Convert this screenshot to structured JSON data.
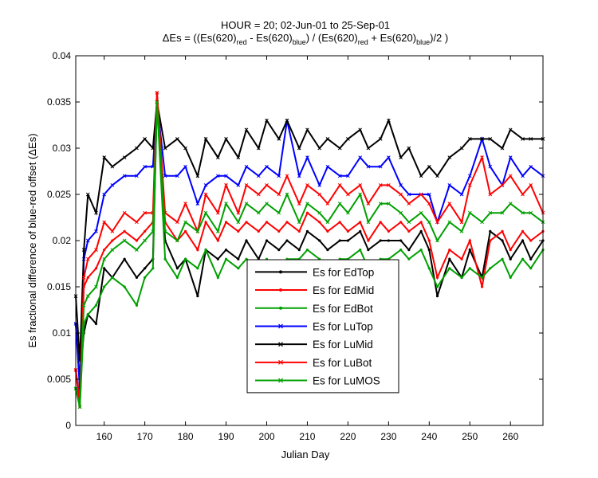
{
  "chart_data": {
    "type": "line",
    "title_line1": "HOUR = 20; 02-Jun-01 to 25-Sep-01",
    "title_line2": {
      "prefix": "ΔEs = ((Es(620)",
      "sub_red": "red",
      "mid1": " - Es(620)",
      "sub_blue": "blue",
      "mid2": ") / (Es(620)",
      "sub_red2": "red",
      "mid3": " + Es(620)",
      "sub_blue2": "blue",
      "suffix": ")/2  )"
    },
    "xlabel": "Julian Day",
    "ylabel": "Es fractional difference of blue-red offset (ΔEs)",
    "xlim": [
      153,
      268
    ],
    "ylim": [
      0,
      0.04
    ],
    "xticks": [
      160,
      170,
      180,
      190,
      200,
      210,
      220,
      230,
      240,
      250,
      260
    ],
    "yticks": [
      0,
      0.005,
      0.01,
      0.015,
      0.02,
      0.025,
      0.03,
      0.035,
      0.04
    ],
    "ytick_labels": [
      "0",
      "0.005",
      "0.01",
      "0.015",
      "0.02",
      "0.025",
      "0.03",
      "0.035",
      "0.04"
    ],
    "legend_position": "bottom-center",
    "series": [
      {
        "name": "Es for EdTop",
        "color": "#000000",
        "marker": "dot",
        "x": [
          153,
          154,
          155,
          156,
          158,
          160,
          162,
          165,
          168,
          170,
          172,
          173,
          175,
          178,
          180,
          183,
          185,
          188,
          190,
          193,
          195,
          198,
          200,
          203,
          205,
          208,
          210,
          213,
          215,
          218,
          220,
          223,
          225,
          228,
          230,
          233,
          235,
          238,
          240,
          242,
          245,
          248,
          250,
          253,
          255,
          258,
          260,
          263,
          265,
          268
        ],
        "y": [
          0.011,
          0.005,
          0.01,
          0.012,
          0.011,
          0.017,
          0.016,
          0.018,
          0.016,
          0.017,
          0.018,
          0.035,
          0.02,
          0.017,
          0.018,
          0.014,
          0.019,
          0.018,
          0.019,
          0.018,
          0.02,
          0.018,
          0.02,
          0.019,
          0.02,
          0.019,
          0.021,
          0.02,
          0.019,
          0.02,
          0.02,
          0.021,
          0.019,
          0.02,
          0.02,
          0.02,
          0.019,
          0.021,
          0.019,
          0.014,
          0.018,
          0.016,
          0.019,
          0.016,
          0.021,
          0.02,
          0.018,
          0.02,
          0.018,
          0.02
        ]
      },
      {
        "name": "Es for EdMid",
        "color": "#ff0000",
        "marker": "dot",
        "x": [
          153,
          154,
          155,
          156,
          158,
          160,
          162,
          165,
          168,
          170,
          172,
          173,
          175,
          178,
          180,
          183,
          185,
          188,
          190,
          193,
          195,
          198,
          200,
          203,
          205,
          208,
          210,
          213,
          215,
          218,
          220,
          223,
          225,
          228,
          230,
          233,
          235,
          238,
          240,
          242,
          245,
          248,
          250,
          253,
          255,
          258,
          260,
          263,
          265,
          268
        ],
        "y": [
          0.006,
          0.003,
          0.015,
          0.016,
          0.017,
          0.019,
          0.02,
          0.021,
          0.02,
          0.021,
          0.022,
          0.036,
          0.022,
          0.02,
          0.021,
          0.019,
          0.022,
          0.02,
          0.022,
          0.021,
          0.022,
          0.021,
          0.022,
          0.021,
          0.022,
          0.021,
          0.023,
          0.022,
          0.021,
          0.022,
          0.021,
          0.022,
          0.02,
          0.022,
          0.021,
          0.022,
          0.021,
          0.022,
          0.02,
          0.016,
          0.019,
          0.018,
          0.02,
          0.015,
          0.02,
          0.021,
          0.019,
          0.021,
          0.02,
          0.021
        ]
      },
      {
        "name": "Es for EdBot",
        "color": "#00a000",
        "marker": "dot",
        "x": [
          153,
          154,
          155,
          156,
          158,
          160,
          162,
          165,
          168,
          170,
          172,
          173,
          175,
          178,
          180,
          183,
          185,
          188,
          190,
          193,
          195,
          198,
          200,
          203,
          205,
          208,
          210,
          213,
          215,
          218,
          220,
          223,
          225,
          228,
          230,
          233,
          235,
          238,
          240,
          242,
          245,
          248,
          250,
          253,
          255,
          258,
          260,
          263,
          265,
          268
        ],
        "y": [
          0.004,
          0.002,
          0.011,
          0.012,
          0.013,
          0.015,
          0.016,
          0.015,
          0.013,
          0.016,
          0.017,
          0.035,
          0.018,
          0.016,
          0.018,
          0.017,
          0.019,
          0.016,
          0.018,
          0.017,
          0.018,
          0.017,
          0.018,
          0.017,
          0.018,
          0.018,
          0.019,
          0.018,
          0.017,
          0.018,
          0.018,
          0.019,
          0.017,
          0.018,
          0.018,
          0.019,
          0.018,
          0.019,
          0.017,
          0.015,
          0.017,
          0.016,
          0.017,
          0.016,
          0.017,
          0.018,
          0.016,
          0.018,
          0.017,
          0.019
        ]
      },
      {
        "name": "Es for LuTop",
        "color": "#0000ff",
        "marker": "x",
        "x": [
          153,
          154,
          155,
          156,
          158,
          160,
          162,
          165,
          168,
          170,
          172,
          173,
          175,
          178,
          180,
          183,
          185,
          188,
          190,
          193,
          195,
          198,
          200,
          203,
          205,
          208,
          210,
          213,
          215,
          218,
          220,
          223,
          225,
          228,
          230,
          233,
          235,
          238,
          240,
          242,
          245,
          248,
          250,
          253,
          255,
          258,
          260,
          263,
          265,
          268
        ],
        "y": [
          0.011,
          0.004,
          0.018,
          0.02,
          0.021,
          0.025,
          0.026,
          0.027,
          0.027,
          0.028,
          0.028,
          0.035,
          0.027,
          0.027,
          0.028,
          0.024,
          0.026,
          0.027,
          0.027,
          0.026,
          0.028,
          0.027,
          0.028,
          0.027,
          0.033,
          0.027,
          0.029,
          0.026,
          0.028,
          0.027,
          0.027,
          0.029,
          0.028,
          0.028,
          0.029,
          0.026,
          0.025,
          0.025,
          0.025,
          0.022,
          0.026,
          0.025,
          0.027,
          0.031,
          0.028,
          0.026,
          0.029,
          0.027,
          0.028,
          0.027
        ]
      },
      {
        "name": "Es for LuMid",
        "color": "#000000",
        "marker": "x",
        "x": [
          153,
          154,
          155,
          156,
          158,
          160,
          162,
          165,
          168,
          170,
          172,
          173,
          175,
          178,
          180,
          183,
          185,
          188,
          190,
          193,
          195,
          198,
          200,
          203,
          205,
          208,
          210,
          213,
          215,
          218,
          220,
          223,
          225,
          228,
          230,
          233,
          235,
          238,
          240,
          242,
          245,
          248,
          250,
          253,
          255,
          258,
          260,
          263,
          265,
          268
        ],
        "y": [
          0.014,
          0.007,
          0.019,
          0.025,
          0.023,
          0.029,
          0.028,
          0.029,
          0.03,
          0.031,
          0.03,
          0.035,
          0.03,
          0.031,
          0.03,
          0.027,
          0.031,
          0.029,
          0.031,
          0.029,
          0.032,
          0.03,
          0.033,
          0.031,
          0.033,
          0.03,
          0.032,
          0.03,
          0.031,
          0.03,
          0.031,
          0.032,
          0.03,
          0.031,
          0.033,
          0.029,
          0.03,
          0.027,
          0.028,
          0.027,
          0.029,
          0.03,
          0.031,
          0.031,
          0.031,
          0.03,
          0.032,
          0.031,
          0.031,
          0.031
        ]
      },
      {
        "name": "Es for LuBot",
        "color": "#ff0000",
        "marker": "x",
        "x": [
          153,
          154,
          155,
          156,
          158,
          160,
          162,
          165,
          168,
          170,
          172,
          173,
          175,
          178,
          180,
          183,
          185,
          188,
          190,
          193,
          195,
          198,
          200,
          203,
          205,
          208,
          210,
          213,
          215,
          218,
          220,
          223,
          225,
          228,
          230,
          233,
          235,
          238,
          240,
          242,
          245,
          248,
          250,
          253,
          255,
          258,
          260,
          263,
          265,
          268
        ],
        "y": [
          0.006,
          0.002,
          0.016,
          0.018,
          0.019,
          0.022,
          0.021,
          0.023,
          0.022,
          0.023,
          0.023,
          0.036,
          0.023,
          0.022,
          0.024,
          0.021,
          0.025,
          0.023,
          0.026,
          0.023,
          0.026,
          0.025,
          0.026,
          0.025,
          0.027,
          0.024,
          0.026,
          0.025,
          0.024,
          0.026,
          0.025,
          0.026,
          0.024,
          0.026,
          0.026,
          0.025,
          0.024,
          0.025,
          0.024,
          0.022,
          0.024,
          0.022,
          0.026,
          0.029,
          0.025,
          0.026,
          0.027,
          0.025,
          0.026,
          0.023
        ]
      },
      {
        "name": "Es for LuMOS",
        "color": "#00a000",
        "marker": "x",
        "x": [
          153,
          154,
          155,
          156,
          158,
          160,
          162,
          165,
          168,
          170,
          172,
          173,
          175,
          178,
          180,
          183,
          185,
          188,
          190,
          193,
          195,
          198,
          200,
          203,
          205,
          208,
          210,
          213,
          215,
          218,
          220,
          223,
          225,
          228,
          230,
          233,
          235,
          238,
          240,
          242,
          245,
          248,
          250,
          253,
          255,
          258,
          260,
          263,
          265,
          268
        ],
        "y": [
          0.004,
          0.002,
          0.013,
          0.014,
          0.015,
          0.018,
          0.019,
          0.02,
          0.019,
          0.02,
          0.021,
          0.035,
          0.021,
          0.02,
          0.022,
          0.021,
          0.023,
          0.021,
          0.024,
          0.022,
          0.024,
          0.023,
          0.024,
          0.023,
          0.025,
          0.022,
          0.024,
          0.023,
          0.022,
          0.024,
          0.023,
          0.025,
          0.022,
          0.024,
          0.024,
          0.023,
          0.022,
          0.023,
          0.022,
          0.02,
          0.022,
          0.021,
          0.023,
          0.022,
          0.023,
          0.023,
          0.024,
          0.023,
          0.023,
          0.022
        ]
      }
    ]
  }
}
